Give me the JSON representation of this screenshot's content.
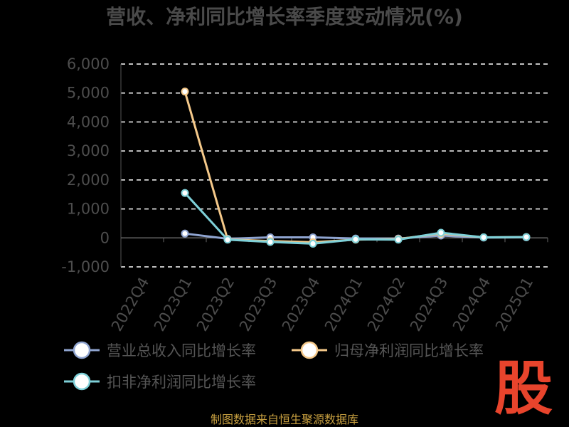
{
  "chart_data": {
    "type": "line",
    "title": "营收、净利同比增长率季度变动情况(%)",
    "categories": [
      "2022Q4",
      "2023Q1",
      "2023Q2",
      "2023Q3",
      "2023Q4",
      "2024Q1",
      "2024Q2",
      "2024Q3",
      "2024Q4",
      "2025Q1"
    ],
    "ylim": [
      -1000,
      6000
    ],
    "yticks": [
      "6,000",
      "5,000",
      "4,000",
      "3,000",
      "2,000",
      "1,000",
      "0",
      "-1,000"
    ],
    "grid": true,
    "legend_position": "bottom",
    "series": [
      {
        "name": "营业总收入同比增长率",
        "color": "#8fa4d0",
        "values": [
          null,
          150,
          -30,
          20,
          20,
          -20,
          -20,
          80,
          10,
          20
        ]
      },
      {
        "name": "归母净利润同比增长率",
        "color": "#f5c98a",
        "values": [
          null,
          5050,
          -50,
          -110,
          -150,
          -60,
          -40,
          150,
          20,
          30
        ]
      },
      {
        "name": "扣非净利润同比增长率",
        "color": "#7ed0d8",
        "values": [
          null,
          1550,
          -60,
          -140,
          -200,
          -50,
          -60,
          180,
          20,
          30
        ]
      }
    ]
  },
  "footer": {
    "source": "制图数据来自恒生聚源数据库",
    "logo_text": "股"
  }
}
